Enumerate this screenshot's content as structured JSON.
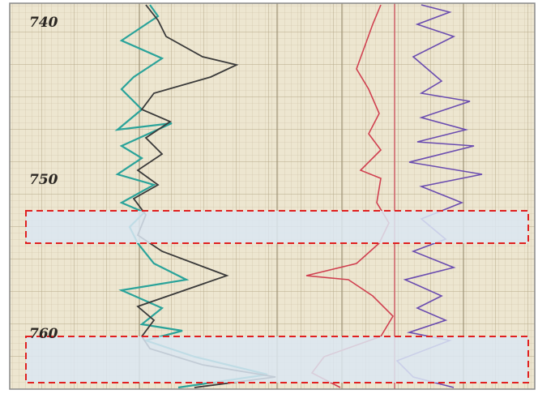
{
  "depth_labels": [
    "740",
    "750",
    "760"
  ]
}
